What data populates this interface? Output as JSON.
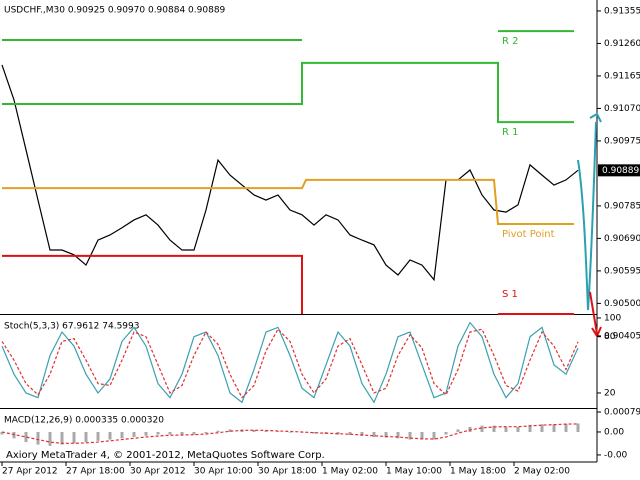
{
  "watermark": "Axiory MetaTrader 4, © 2001-2012, MetaQuotes Software Corp.",
  "chart_data": [
    {
      "type": "line",
      "title": "USDCHF.,M30  0.90925 0.90970 0.90884 0.90889",
      "x": [
        0,
        3,
        6,
        9,
        12,
        15,
        18,
        21,
        24,
        27,
        30,
        33,
        36,
        39,
        42,
        45,
        48,
        51,
        54,
        57,
        60,
        63,
        66,
        69,
        72,
        75,
        78,
        81,
        84,
        87,
        90,
        93,
        96,
        99,
        102,
        105,
        108,
        111,
        114,
        117,
        120,
        123,
        126,
        129,
        132,
        135,
        138,
        141,
        144
      ],
      "xticks": [
        {
          "value": 0,
          "label": "27 Apr 2012"
        },
        {
          "value": 16,
          "label": "27 Apr 18:00"
        },
        {
          "value": 32,
          "label": "30 Apr 2012"
        },
        {
          "value": 48,
          "label": "30 Apr 10:00"
        },
        {
          "value": 64,
          "label": "30 Apr 18:00"
        },
        {
          "value": 80,
          "label": "1 May 02:00"
        },
        {
          "value": 96,
          "label": "1 May 10:00"
        },
        {
          "value": 112,
          "label": "1 May 18:00"
        },
        {
          "value": 128,
          "label": "2 May 02:00"
        }
      ],
      "ylim": [
        0.90469,
        0.91387
      ],
      "yticks": [
        0.91355,
        {
          "value": 0.9126,
          "label": "0.91260"
        },
        0.91165,
        {
          "value": 0.9107,
          "label": "0.91070"
        },
        0.90975,
        0.90785,
        {
          "value": 0.9069,
          "label": "0.90690"
        },
        0.90595,
        {
          "value": 0.905,
          "label": "0.90500"
        },
        0.90405
      ],
      "last_price": 0.90889,
      "series": [
        {
          "color": "#000000",
          "values": [
            0.91197,
            0.91095,
            0.90949,
            0.90802,
            0.90656,
            0.90656,
            0.90642,
            0.90612,
            0.90685,
            0.907,
            0.90721,
            0.90744,
            0.90759,
            0.90729,
            0.90685,
            0.90656,
            0.90656,
            0.90773,
            0.90919,
            0.90875,
            0.90846,
            0.90817,
            0.90802,
            0.90817,
            0.90773,
            0.90759,
            0.90729,
            0.90759,
            0.90744,
            0.907,
            0.90685,
            0.90671,
            0.90612,
            0.90583,
            0.90627,
            0.90612,
            0.90569,
            0.90861,
            0.90861,
            0.9089,
            0.90817,
            0.90773,
            0.90767,
            0.90788,
            0.90905,
            0.90875,
            0.90846,
            0.90861,
            0.90889
          ]
        },
        {
          "name": "R 2",
          "color": "#33b833",
          "x": [
            0,
            75,
            76,
            124,
            143
          ],
          "values": [
            0.9127,
            0.9127,
            null,
            0.91296,
            0.91296
          ]
        },
        {
          "name": "R 1",
          "color": "#33b833",
          "x": [
            0,
            75,
            75,
            124,
            124,
            143
          ],
          "values": [
            0.91083,
            0.91083,
            0.91203,
            0.91203,
            0.9103,
            0.9103
          ]
        },
        {
          "name": "Pivot Point",
          "color": "#e0a020",
          "x": [
            0,
            75,
            76,
            123,
            124,
            143
          ],
          "values": [
            0.90837,
            0.90837,
            0.90861,
            0.90861,
            0.90732,
            0.90732
          ]
        },
        {
          "name": "S 1",
          "color": "#dd1111",
          "x": [
            0,
            75,
            75,
            124,
            124,
            143
          ],
          "values": [
            0.90639,
            0.90639,
            0.90469,
            null,
            0.90469,
            0.90469
          ]
        }
      ]
    },
    {
      "type": "line",
      "title": "Stoch(5,3,3) 67.9612 74.5993",
      "x": [
        0,
        3,
        6,
        9,
        12,
        15,
        18,
        21,
        24,
        27,
        30,
        33,
        36,
        39,
        42,
        45,
        48,
        51,
        54,
        57,
        60,
        63,
        66,
        69,
        72,
        75,
        78,
        81,
        84,
        87,
        90,
        93,
        96,
        99,
        102,
        105,
        108,
        111,
        114,
        117,
        120,
        123,
        126,
        129,
        132,
        135,
        138,
        141,
        144
      ],
      "ylim": [
        6.1,
        102.1
      ],
      "yticks": [
        100,
        80,
        20
      ],
      "series": [
        {
          "color": "#3aa0b0",
          "values": [
            70,
            40,
            20,
            15,
            60,
            85,
            70,
            40,
            20,
            35,
            75,
            90,
            70,
            30,
            15,
            40,
            80,
            85,
            60,
            20,
            10,
            45,
            85,
            90,
            60,
            25,
            15,
            50,
            85,
            70,
            30,
            10,
            40,
            80,
            85,
            50,
            15,
            20,
            70,
            95,
            80,
            40,
            15,
            30,
            80,
            90,
            50,
            40,
            67.9612
          ]
        },
        {
          "color": "#e03030",
          "dashed": true,
          "values": [
            75,
            55,
            30,
            18,
            40,
            75,
            78,
            55,
            30,
            28,
            55,
            85,
            80,
            50,
            20,
            28,
            60,
            85,
            72,
            40,
            15,
            28,
            65,
            88,
            75,
            40,
            20,
            35,
            70,
            78,
            50,
            20,
            25,
            60,
            82,
            68,
            30,
            18,
            45,
            85,
            88,
            60,
            28,
            22,
            55,
            85,
            70,
            45,
            74.5993
          ]
        }
      ]
    },
    {
      "type": "bar",
      "title": "MACD(12,26,9) 0.000335 0.000320",
      "x": [
        0,
        3,
        6,
        9,
        12,
        15,
        18,
        21,
        24,
        27,
        30,
        33,
        36,
        39,
        42,
        45,
        48,
        51,
        54,
        57,
        60,
        63,
        66,
        69,
        72,
        75,
        78,
        81,
        84,
        87,
        90,
        93,
        96,
        99,
        102,
        105,
        108,
        111,
        114,
        117,
        120,
        123,
        126,
        129,
        132,
        135,
        138,
        141,
        144
      ],
      "ylim": [
        -0.00111,
        0.00087
      ],
      "yticks": [
        0.00079,
        {
          "value": 0,
          "label": "0.00"
        },
        {
          "value": -0.00091,
          "label": "-0.00"
        }
      ],
      "series": [
        {
          "color": "#a8a8a8",
          "values": [
            -0.0001,
            -0.00025,
            -0.0004,
            -0.0005,
            -0.00055,
            -0.0005,
            -0.00045,
            -0.0004,
            -0.00035,
            -0.0003,
            -0.00025,
            -0.0002,
            -0.00015,
            -0.0001,
            -0.0001,
            -0.00012,
            -0.0001,
            -5e-05,
            5e-05,
            0.0001,
            0.0001,
            8e-05,
            5e-05,
            3e-05,
            0,
            -3e-05,
            -6e-05,
            -8e-05,
            -0.0001,
            -0.00012,
            -0.00015,
            -0.0002,
            -0.00022,
            -0.00025,
            -0.0003,
            -0.0003,
            -0.0003,
            -0.0001,
            0.0001,
            0.0002,
            0.00025,
            0.00025,
            0.0002,
            0.0002,
            0.00028,
            0.0003,
            0.0003,
            0.00032,
            0.000335
          ]
        },
        {
          "type": "line",
          "color": "#e03030",
          "dashed": true,
          "values": [
            0,
            -0.0001,
            -0.0002,
            -0.0003,
            -0.0004,
            -0.00045,
            -0.00045,
            -0.00043,
            -0.0004,
            -0.00035,
            -0.0003,
            -0.00025,
            -0.0002,
            -0.00016,
            -0.00013,
            -0.00012,
            -0.00011,
            -8e-05,
            -3e-05,
            3e-05,
            6e-05,
            7e-05,
            6e-05,
            4e-05,
            2e-05,
            0,
            -3e-05,
            -5e-05,
            -7e-05,
            -9e-05,
            -0.00012,
            -0.00015,
            -0.00018,
            -0.0002,
            -0.00024,
            -0.00027,
            -0.00028,
            -0.0002,
            -5e-05,
            8e-05,
            0.00016,
            0.0002,
            0.00021,
            0.00021,
            0.00024,
            0.00027,
            0.00029,
            0.00031,
            0.00032
          ]
        }
      ]
    }
  ]
}
